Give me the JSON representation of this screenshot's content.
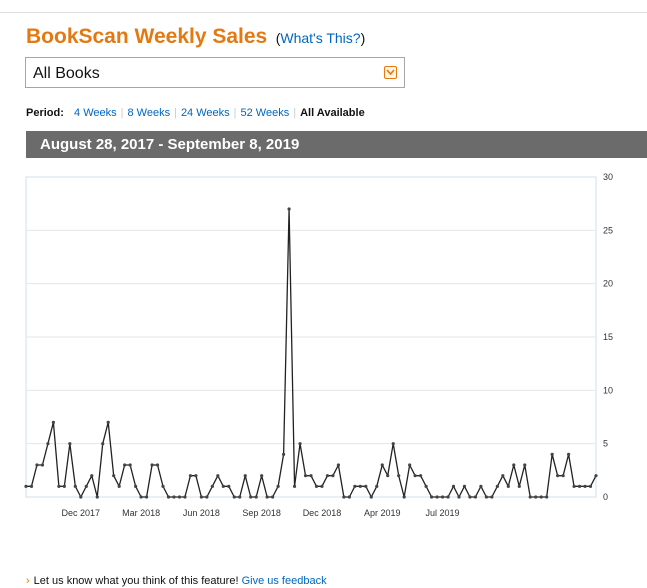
{
  "header": {
    "title": "BookScan Weekly Sales",
    "whats_open": "(",
    "whats_link": "What's This?",
    "whats_close": ")"
  },
  "format_select": {
    "selected": "All Books"
  },
  "period": {
    "label": "Period:",
    "options": [
      "4 Weeks",
      "8 Weeks",
      "24 Weeks",
      "52 Weeks",
      "All Available"
    ],
    "active": "All Available"
  },
  "date_range": "August 28, 2017 - September 8, 2019",
  "colors": {
    "title": "#e47911",
    "link": "#0066c0",
    "band": "#6b6b6b",
    "line": "#222222",
    "grid": "#e6e6e6",
    "frame": "#cfe0ef"
  },
  "chart_data": {
    "type": "line",
    "y_ticks": [
      0,
      5,
      10,
      15,
      20,
      25,
      30
    ],
    "ylim": [
      0,
      30
    ],
    "y_axis_position": "right",
    "grid": true,
    "x_tick_labels": [
      "Dec 2017",
      "Mar 2018",
      "Jun 2018",
      "Sep 2018",
      "Dec 2018",
      "Apr 2019",
      "Jul 2019"
    ],
    "x_tick_indices": [
      10,
      21,
      32,
      43,
      54,
      65,
      76
    ],
    "series": [
      {
        "values": [
          1,
          1,
          3,
          3,
          5,
          7,
          1,
          1,
          5,
          1,
          0,
          1,
          2,
          0,
          5,
          7,
          2,
          1,
          3,
          3,
          1,
          0,
          0,
          3,
          3,
          1,
          0,
          0,
          0,
          0,
          2,
          2,
          0,
          0,
          1,
          2,
          1,
          1,
          0,
          0,
          2,
          0,
          0,
          2,
          0,
          0,
          1,
          4,
          27,
          1,
          5,
          2,
          2,
          1,
          1,
          2,
          2,
          3,
          0,
          0,
          1,
          1,
          1,
          0,
          1,
          3,
          2,
          5,
          2,
          0,
          3,
          2,
          2,
          1,
          0,
          0,
          0,
          0,
          1,
          0,
          1,
          0,
          0,
          1,
          0,
          0,
          1,
          2,
          1,
          3,
          1,
          3,
          0,
          0,
          0,
          0,
          4,
          2,
          2,
          4,
          1,
          1,
          1,
          1,
          2
        ]
      }
    ]
  },
  "feedback": {
    "bullet": "›",
    "text": "Let us know what you think of this feature!",
    "link": "Give us feedback"
  }
}
